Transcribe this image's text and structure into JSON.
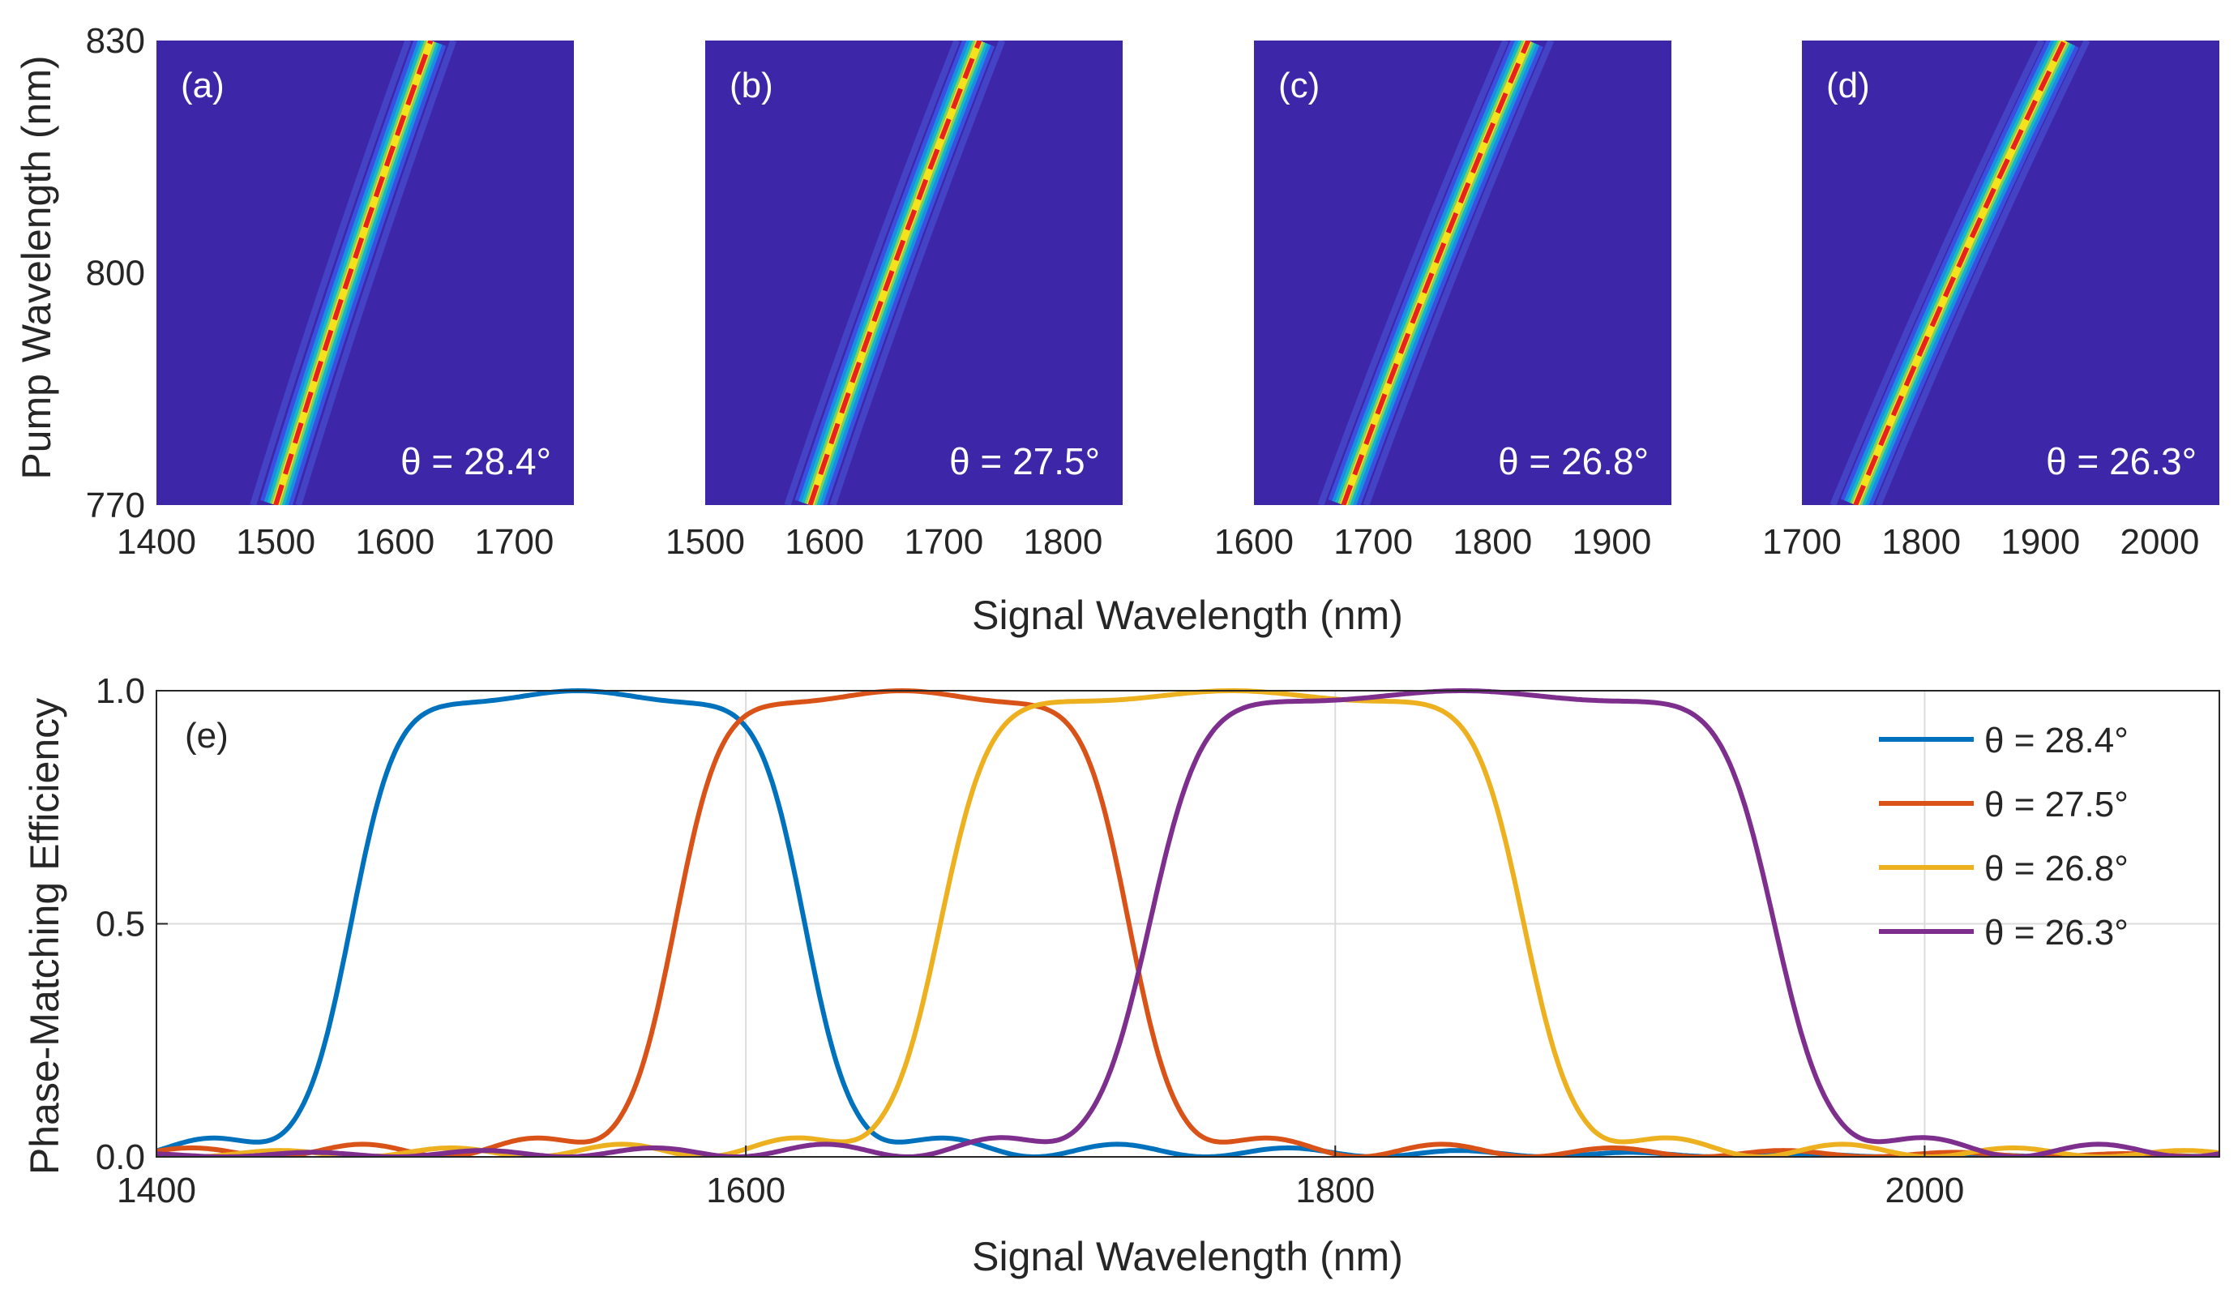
{
  "colors": {
    "background_map": "#3d26a8",
    "ridge_dashed": "#e8221e",
    "series": [
      "#0072bd",
      "#d95319",
      "#edb120",
      "#7e2f8e"
    ]
  },
  "chart_data": [
    {
      "type": "heatmap",
      "panel_label": "(a)",
      "annotation": "θ = 28.4°",
      "theta_deg": 28.4,
      "x_range": [
        1400,
        1750
      ],
      "x_ticks": [
        "1400",
        "1500",
        "1600",
        "1700"
      ],
      "y_range": [
        770,
        830
      ],
      "y_ticks": [
        "770",
        "800",
        "830"
      ],
      "ridge": {
        "x_at_770": 1500,
        "x_at_830": 1630
      },
      "ylabel": "Pump Wavelength (nm)"
    },
    {
      "type": "heatmap",
      "panel_label": "(b)",
      "annotation": "θ = 27.5°",
      "theta_deg": 27.5,
      "x_range": [
        1500,
        1850
      ],
      "x_ticks": [
        "1500",
        "1600",
        "1700",
        "1800"
      ],
      "y_range": [
        770,
        830
      ],
      "ridge": {
        "x_at_770": 1588,
        "x_at_830": 1730
      }
    },
    {
      "type": "heatmap",
      "panel_label": "(c)",
      "annotation": "θ = 26.8°",
      "theta_deg": 26.8,
      "x_range": [
        1600,
        1950
      ],
      "x_ticks": [
        "1600",
        "1700",
        "1800",
        "1900"
      ],
      "y_range": [
        770,
        830
      ],
      "ridge": {
        "x_at_770": 1675,
        "x_at_830": 1830
      }
    },
    {
      "type": "heatmap",
      "panel_label": "(d)",
      "annotation": "θ = 26.3°",
      "theta_deg": 26.3,
      "x_range": [
        1700,
        2050
      ],
      "x_ticks": [
        "1700",
        "1800",
        "1900",
        "2000"
      ],
      "y_range": [
        770,
        830
      ],
      "ridge": {
        "x_at_770": 1745,
        "x_at_830": 1920
      },
      "shared_xlabel": "Signal Wavelength (nm)"
    },
    {
      "type": "line",
      "panel_label": "(e)",
      "xlabel": "Signal Wavelength (nm)",
      "ylabel": "Phase-Matching Efficiency",
      "xlim": [
        1400,
        2100
      ],
      "ylim": [
        0,
        1
      ],
      "x_ticks": [
        "1400",
        "1600",
        "1800",
        "2000"
      ],
      "y_ticks": [
        "0.0",
        "0.5",
        "1.0"
      ],
      "grid": true,
      "legend": "top-right",
      "series": [
        {
          "name": "θ = 28.4°",
          "color": "#0072bd",
          "center": 1543,
          "half_width": 69,
          "edge": 28,
          "ripple_amp": 0.045
        },
        {
          "name": "θ = 27.5°",
          "color": "#d95319",
          "center": 1653,
          "half_width": 69,
          "edge": 28,
          "ripple_amp": 0.045
        },
        {
          "name": "θ = 26.8°",
          "color": "#edb120",
          "center": 1765,
          "half_width": 91,
          "edge": 30,
          "ripple_amp": 0.045
        },
        {
          "name": "θ = 26.3°",
          "color": "#7e2f8e",
          "center": 1843,
          "half_width": 98,
          "edge": 32,
          "ripple_amp": 0.045
        }
      ]
    }
  ]
}
